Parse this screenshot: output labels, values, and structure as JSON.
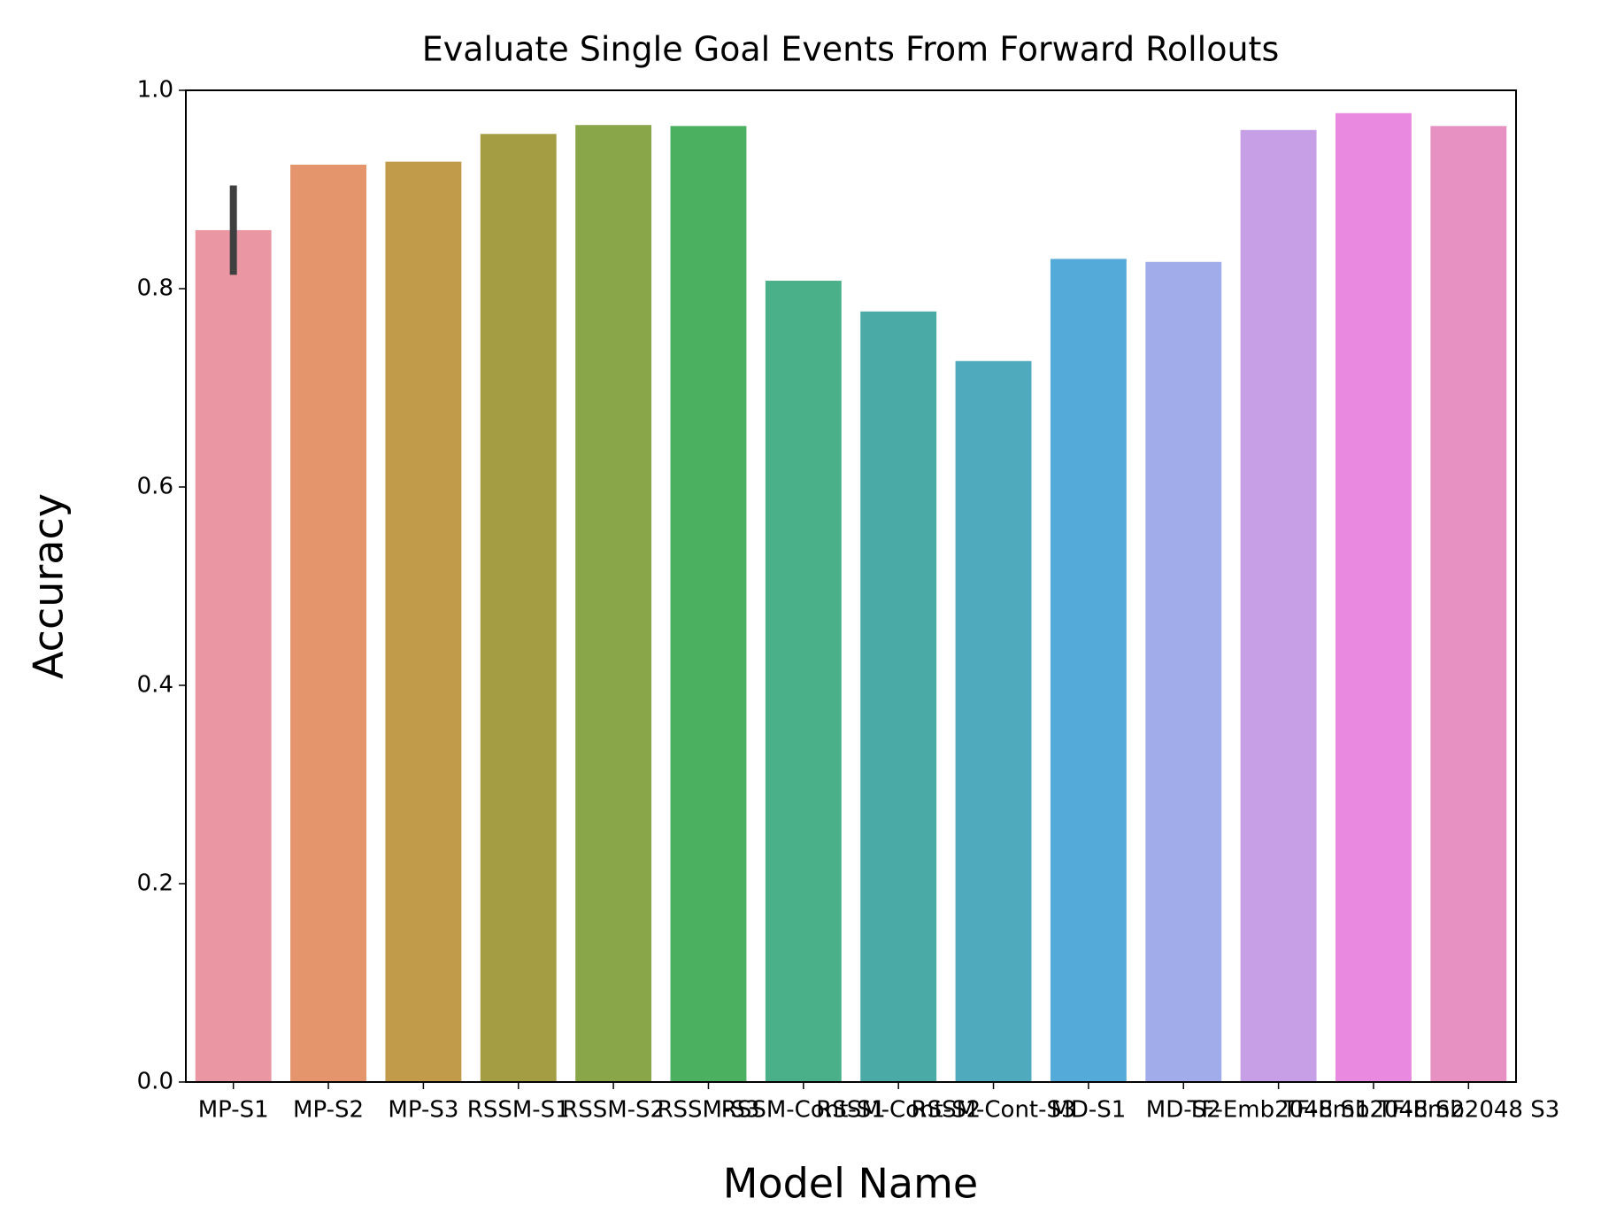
{
  "chart_data": {
    "type": "bar",
    "title": "Evaluate Single Goal Events From Forward Rollouts",
    "x_label": "Model Name",
    "y_label": "Accuracy",
    "categories": [
      "MP-S1",
      "MP-S2",
      "MP-S3",
      "RSSM-S1",
      "RSSM-S2",
      "RSSM-S3",
      "RSSM-Cont-S1",
      "RSSM-Cont-S2",
      "RSSM-Cont-S3",
      "MD-S1",
      "MD-S2",
      "TF-Emb2048 S1",
      "TF-Emb2048 S2",
      "TF-Emb2048 S3"
    ],
    "values": [
      0.859,
      0.925,
      0.928,
      0.956,
      0.965,
      0.964,
      0.808,
      0.777,
      0.727,
      0.83,
      0.827,
      0.96,
      0.977,
      0.964
    ],
    "errors": [
      0.045,
      null,
      null,
      null,
      null,
      null,
      null,
      null,
      null,
      null,
      null,
      null,
      null,
      null
    ],
    "colors": [
      "#ea96a3",
      "#e4956b",
      "#c19a4a",
      "#a59d44",
      "#89a748",
      "#4bb060",
      "#4ab08a",
      "#4aaaa6",
      "#50aabd",
      "#54aad8",
      "#a1aceb",
      "#c69fe6",
      "#e98ae0",
      "#e791c3"
    ],
    "ylim": [
      0,
      1
    ],
    "yticks": [
      {
        "value": 0,
        "label": "0.0"
      },
      {
        "value": 0.2,
        "label": "0.2"
      },
      {
        "value": 0.4,
        "label": "0.4"
      },
      {
        "value": 0.6,
        "label": "0.6"
      },
      {
        "value": 0.8,
        "label": "0.8"
      },
      {
        "value": 1,
        "label": "1.0"
      }
    ]
  }
}
